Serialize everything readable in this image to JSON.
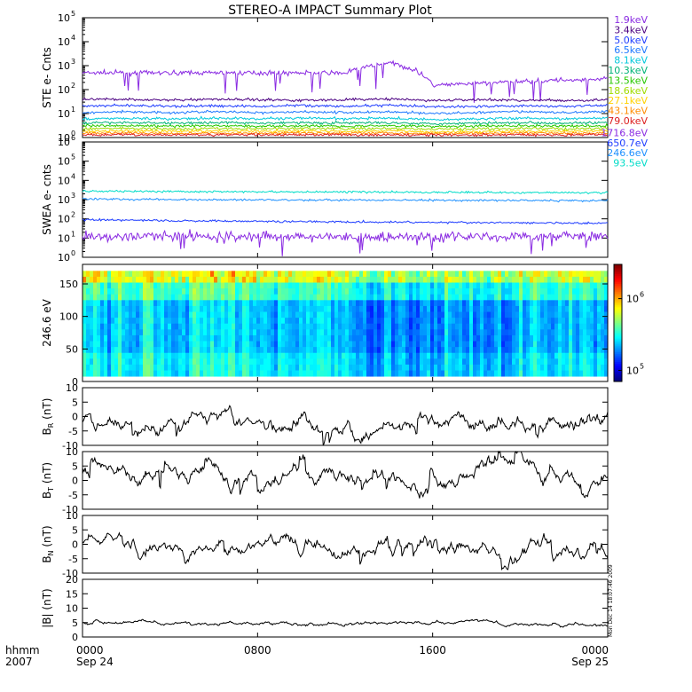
{
  "title": "STEREO-A IMPACT Summary Plot",
  "time_axis": {
    "corner_top": "hhmm",
    "corner_bottom": "2007",
    "ticks": [
      {
        "hour": 0,
        "label": "0000",
        "sub": "Sep 24"
      },
      {
        "hour": 8,
        "label": "0800",
        "sub": ""
      },
      {
        "hour": 16,
        "label": "1600",
        "sub": ""
      },
      {
        "hour": 24,
        "label": "0000",
        "sub": "Sep 25"
      }
    ],
    "range_hours": [
      0,
      24
    ]
  },
  "timestamp": "Mon Dec 14 18:07:46 2009",
  "chart_data": [
    {
      "id": "ste",
      "type": "line",
      "ylabel": "STE e- Cnts",
      "yscale": "log",
      "ylim": [
        1,
        100000
      ],
      "ytick_exponents": [
        0,
        1,
        2,
        3,
        4,
        5
      ],
      "series": [
        {
          "name": "1.9keV",
          "color": "#8a2be2",
          "level": [
            500,
            500,
            500,
            500,
            500,
            500,
            500,
            1300,
            150,
            180,
            220,
            250,
            280
          ]
        },
        {
          "name": "3.4keV",
          "color": "#4b0082",
          "level": [
            38,
            40,
            36,
            40,
            38,
            36,
            38,
            40,
            35,
            38,
            36,
            35,
            38
          ]
        },
        {
          "name": "5.0keV",
          "color": "#1e3cff",
          "level": [
            20,
            22,
            20,
            21,
            20,
            22,
            20,
            22,
            19,
            20,
            21,
            20,
            22
          ]
        },
        {
          "name": "6.5keV",
          "color": "#1e78ff",
          "level": [
            11,
            12,
            11,
            12,
            11,
            12,
            11,
            12,
            10,
            11,
            12,
            11,
            12
          ]
        },
        {
          "name": "8.1keV",
          "color": "#00c8dc",
          "level": [
            6,
            6.5,
            6,
            6.5,
            6,
            6.5,
            6,
            6.5,
            5.5,
            6,
            6.5,
            6,
            6.5
          ]
        },
        {
          "name": "10.3keV",
          "color": "#00b478",
          "level": [
            4,
            4.2,
            4,
            4.2,
            4,
            4.2,
            4,
            4.2,
            3.8,
            4,
            4.2,
            4,
            4.2
          ]
        },
        {
          "name": "13.5keV",
          "color": "#28c800",
          "level": [
            3,
            3.1,
            3,
            3.1,
            3,
            3.1,
            3,
            3.1,
            2.9,
            3,
            3.1,
            3,
            3.1
          ]
        },
        {
          "name": "18.6keV",
          "color": "#a0dc00",
          "level": [
            2.3,
            2.4,
            2.3,
            2.4,
            2.3,
            2.4,
            2.3,
            2.4,
            2.2,
            2.3,
            2.4,
            2.3,
            2.4
          ]
        },
        {
          "name": "27.1keV",
          "color": "#ffd200",
          "level": [
            1.8,
            1.9,
            1.8,
            1.9,
            1.8,
            1.9,
            1.8,
            1.9,
            1.7,
            1.8,
            1.9,
            1.8,
            1.9
          ]
        },
        {
          "name": "43.1keV",
          "color": "#ff8c00",
          "level": [
            1.5,
            1.55,
            1.5,
            1.55,
            1.5,
            1.55,
            1.5,
            1.55,
            1.45,
            1.5,
            1.55,
            1.5,
            1.55
          ]
        },
        {
          "name": "79.0keV",
          "color": "#dc1e1e",
          "level": [
            1.3,
            1.3,
            1.3,
            1.3,
            1.3,
            1.3,
            1.3,
            1.3,
            1.3,
            1.3,
            1.3,
            1.3,
            1.3
          ]
        }
      ]
    },
    {
      "id": "swea",
      "type": "line",
      "ylabel": "SWEA e- cnts",
      "yscale": "log",
      "ylim": [
        1,
        1000000
      ],
      "ytick_exponents": [
        0,
        1,
        2,
        3,
        4,
        5,
        6
      ],
      "series": [
        {
          "name": "1716.8eV",
          "color": "#8a2be2",
          "level": [
            12,
            12,
            12,
            12,
            12,
            12,
            12,
            12,
            12,
            12,
            12,
            12,
            12
          ]
        },
        {
          "name": "650.7eV",
          "color": "#1e3cff",
          "level": [
            90,
            85,
            80,
            78,
            75,
            72,
            70,
            68,
            66,
            64,
            62,
            60,
            60
          ]
        },
        {
          "name": "246.6eV",
          "color": "#1e90ff",
          "level": [
            1100,
            1050,
            1000,
            1000,
            980,
            960,
            950,
            950,
            930,
            920,
            910,
            900,
            900
          ]
        },
        {
          "name": "93.5eV",
          "color": "#00dcc8",
          "level": [
            2800,
            2700,
            2600,
            2600,
            2550,
            2500,
            2500,
            2450,
            2400,
            2400,
            2350,
            2300,
            2300
          ]
        }
      ]
    },
    {
      "id": "pad",
      "type": "heatmap",
      "ylabel": "246.6 eV",
      "ylim": [
        0,
        180
      ],
      "yticks": [
        0,
        50,
        100,
        150
      ],
      "colorbar": {
        "scale": "log",
        "range": [
          70000,
          3000000
        ],
        "tick_exponents": [
          5,
          6
        ]
      }
    },
    {
      "id": "br",
      "type": "line",
      "ylabel": "BR (nT)",
      "label_main": "B",
      "label_sub": "R",
      "label_unit": "(nT)",
      "ylim": [
        -10,
        10
      ],
      "yticks": [
        -10,
        -5,
        0,
        5,
        10
      ],
      "series": [
        {
          "name": "",
          "color": "#000000",
          "level": [
            -2,
            -1,
            -2,
            -1.5,
            -2.5,
            -1.5,
            -2,
            -1,
            -2,
            -2.5,
            -1,
            -1.5,
            -1
          ]
        }
      ]
    },
    {
      "id": "bt",
      "type": "line",
      "ylabel": "BT (nT)",
      "label_main": "B",
      "label_sub": "T",
      "label_unit": "(nT)",
      "ylim": [
        -10,
        10
      ],
      "yticks": [
        -10,
        -5,
        0,
        5,
        10
      ],
      "series": [
        {
          "name": "",
          "color": "#000000",
          "level": [
            3,
            2,
            1,
            2,
            0,
            1,
            2,
            1,
            -1,
            1,
            2,
            0,
            2
          ]
        }
      ]
    },
    {
      "id": "bn",
      "type": "line",
      "ylabel": "BN (nT)",
      "label_main": "B",
      "label_sub": "N",
      "label_unit": "(nT)",
      "ylim": [
        -10,
        10
      ],
      "yticks": [
        -10,
        -5,
        0,
        5,
        10
      ],
      "series": [
        {
          "name": "",
          "color": "#000000",
          "level": [
            1,
            0,
            -2,
            0,
            1,
            -1,
            0,
            -1,
            0,
            -1,
            0,
            -1,
            0
          ]
        }
      ]
    },
    {
      "id": "bmag",
      "type": "line",
      "ylabel": "|B| (nT)",
      "label_main": "|B|",
      "label_sub": "",
      "label_unit": "(nT)",
      "ylim": [
        0,
        20
      ],
      "yticks": [
        0,
        5,
        10,
        15,
        20
      ],
      "series": [
        {
          "name": "",
          "color": "#000000",
          "level": [
            5,
            5,
            5,
            4.8,
            5,
            4.7,
            4.5,
            4.5,
            5,
            4.8,
            4.5,
            4.5,
            4.8
          ]
        }
      ]
    }
  ]
}
